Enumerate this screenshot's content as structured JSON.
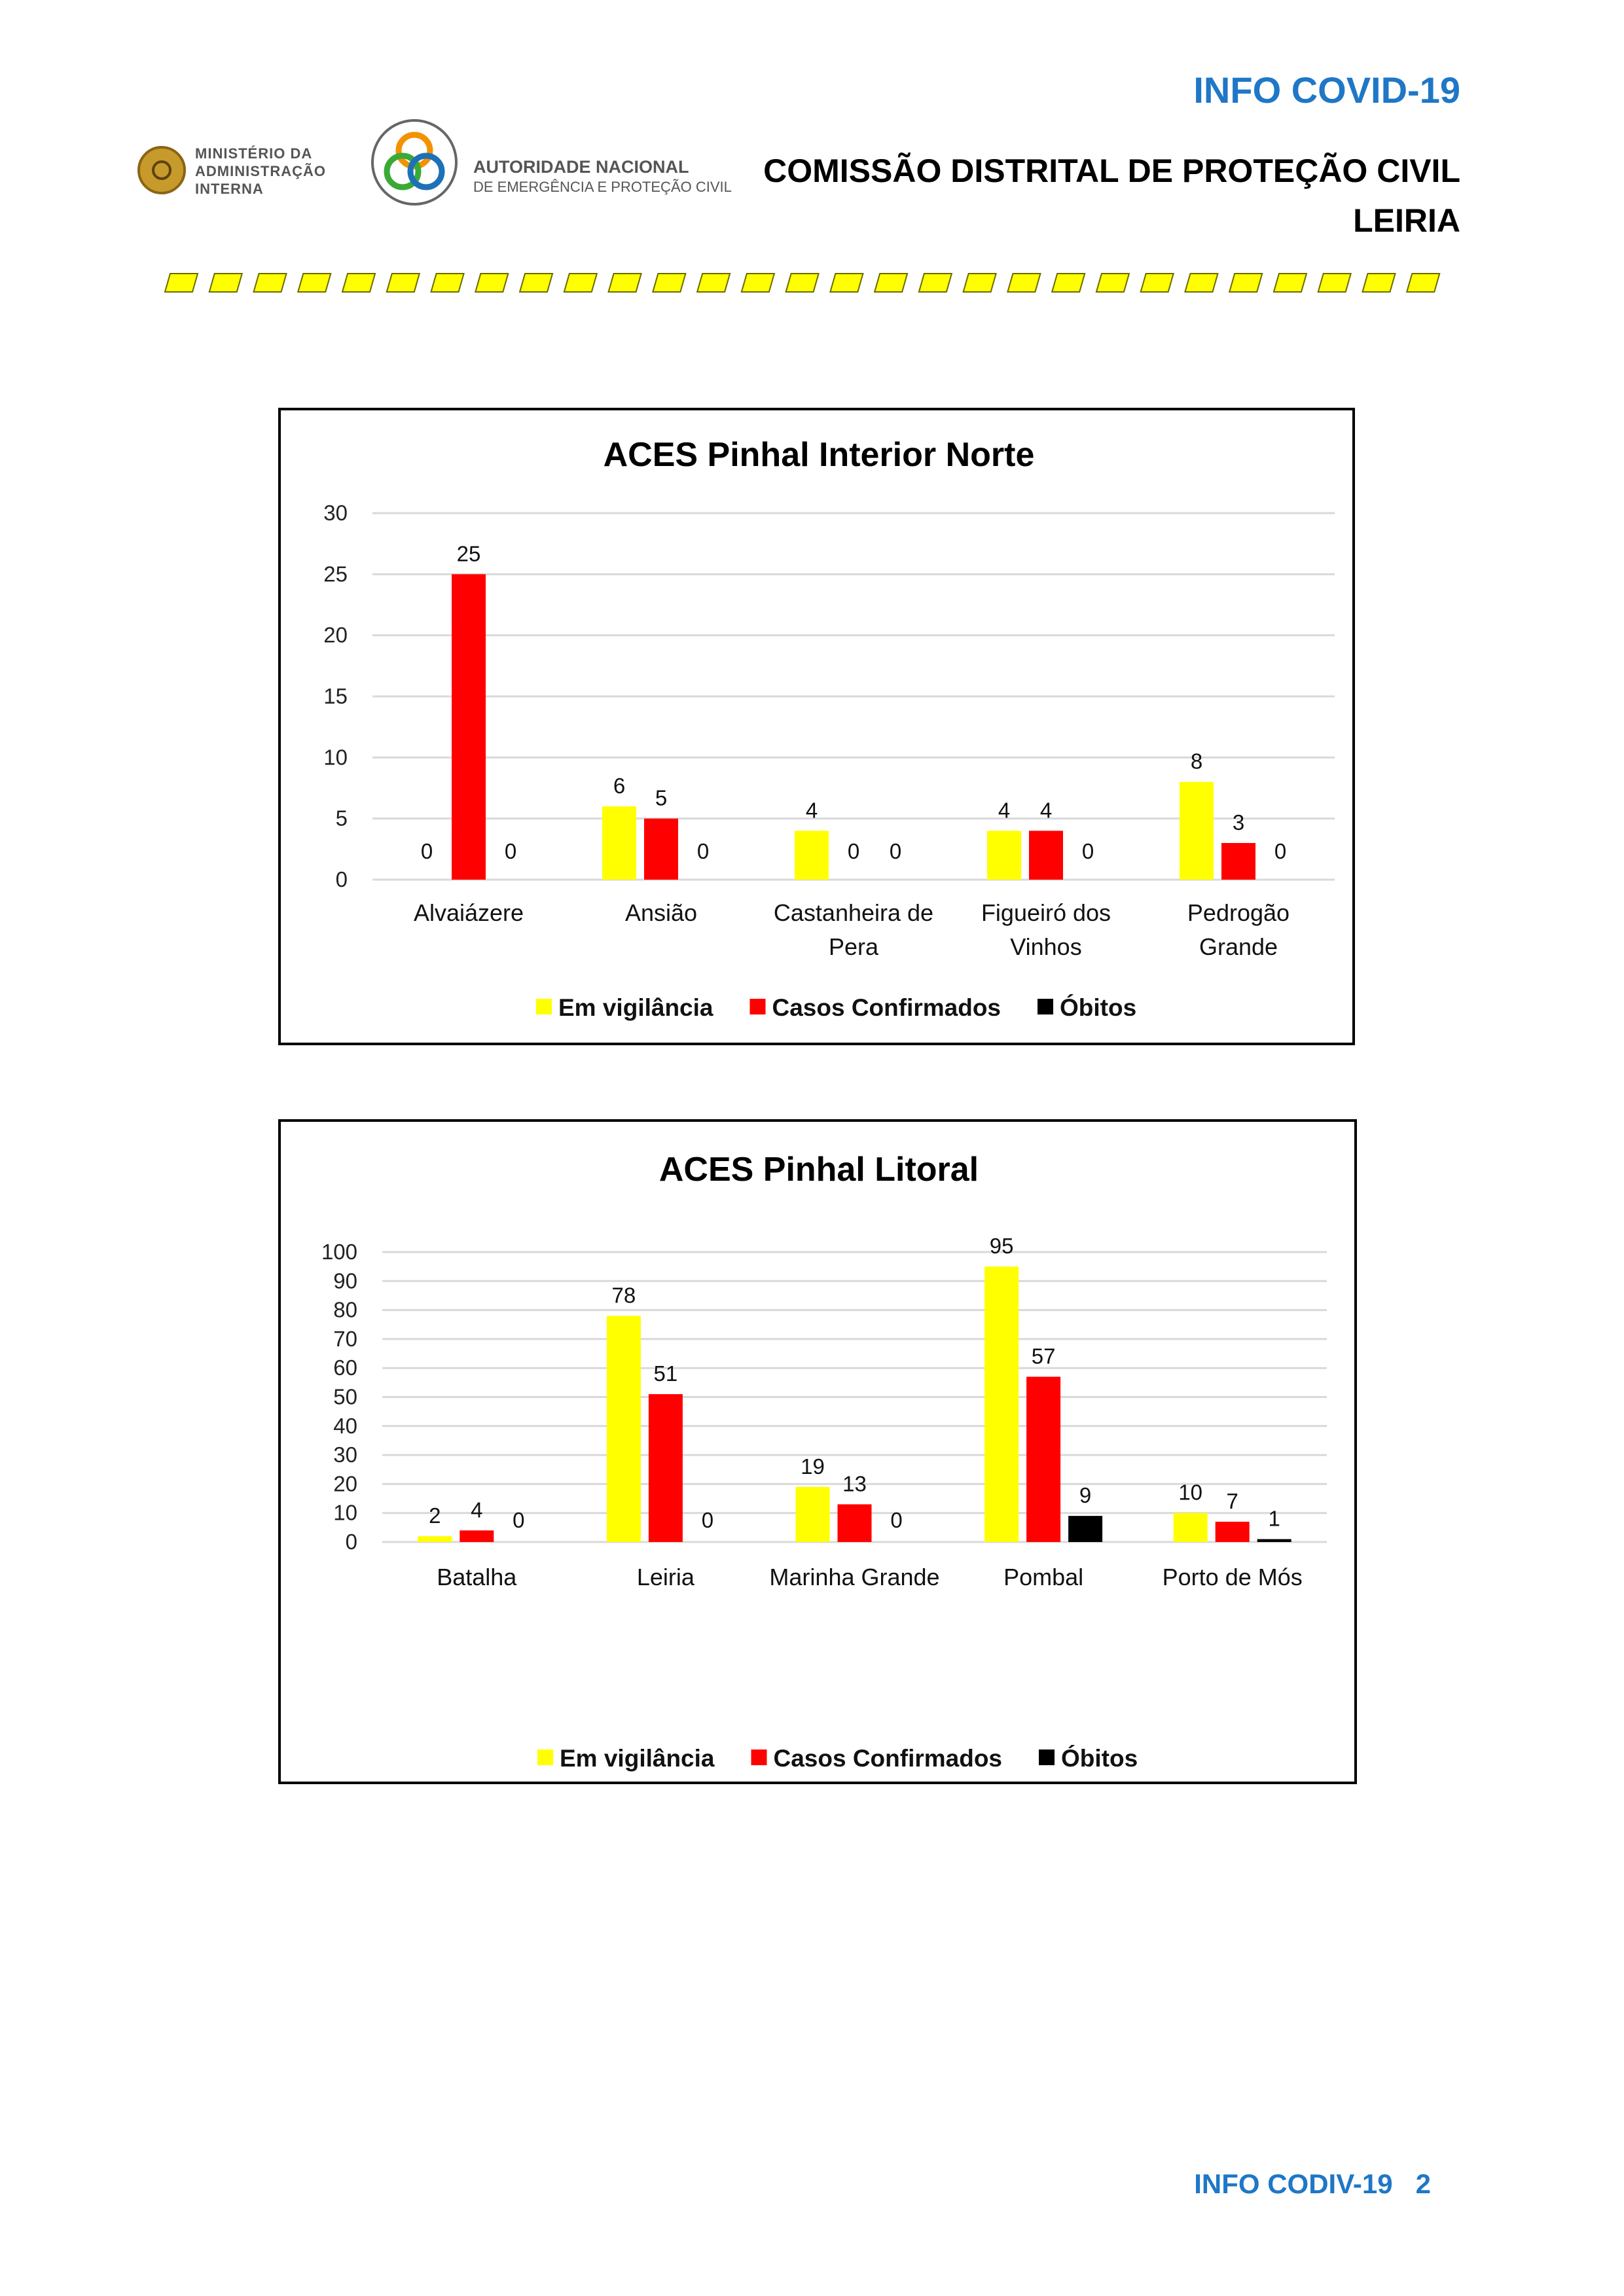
{
  "header": {
    "title": "INFO COVID-19",
    "subtitle_line1": "COMISSÃO DISTRITAL DE PROTEÇÃO CIVIL",
    "subtitle_line2": "LEIRIA",
    "logo_mai_text": [
      "MINISTÉRIO DA",
      "ADMINISTRAÇÃO",
      "INTERNA"
    ],
    "logo_anepc_line1": "AUTORIDADE NACIONAL",
    "logo_anepc_line2": "DE EMERGÊNCIA E PROTEÇÃO CIVIL"
  },
  "colors": {
    "vigilancia": "#ffff00",
    "confirmados": "#ff0000",
    "obitos": "#000000",
    "accent": "#1f77c6",
    "stripe": "#ffff00"
  },
  "chart_data": [
    {
      "type": "bar",
      "title": "ACES Pinhal Interior Norte",
      "categories": [
        [
          "Alvaiázere"
        ],
        [
          "Ansião"
        ],
        [
          "Castanheira de",
          "Pera"
        ],
        [
          "Figueiró dos",
          "Vinhos"
        ],
        [
          "Pedrogão",
          "Grande"
        ]
      ],
      "series": [
        {
          "name": "Em vigilância",
          "values": [
            0,
            6,
            4,
            4,
            8
          ]
        },
        {
          "name": "Casos Confirmados",
          "values": [
            25,
            5,
            0,
            4,
            3
          ]
        },
        {
          "name": "Óbitos",
          "values": [
            0,
            0,
            0,
            0,
            0
          ]
        }
      ],
      "ylim": [
        0,
        30
      ],
      "yticks": [
        0,
        5,
        10,
        15,
        20,
        25,
        30
      ],
      "legend": "bottom"
    },
    {
      "type": "bar",
      "title": "ACES Pinhal Litoral",
      "categories": [
        [
          "Batalha"
        ],
        [
          "Leiria"
        ],
        [
          "Marinha Grande"
        ],
        [
          "Pombal"
        ],
        [
          "Porto de Mós"
        ]
      ],
      "series": [
        {
          "name": "Em vigilância",
          "values": [
            2,
            78,
            19,
            95,
            10
          ]
        },
        {
          "name": "Casos Confirmados",
          "values": [
            4,
            51,
            13,
            57,
            7
          ]
        },
        {
          "name": "Óbitos",
          "values": [
            0,
            0,
            0,
            9,
            1
          ]
        }
      ],
      "ylim": [
        0,
        100
      ],
      "yticks": [
        0,
        10,
        20,
        30,
        40,
        50,
        60,
        70,
        80,
        90,
        100
      ],
      "legend": "bottom"
    }
  ],
  "footer": {
    "text": "INFO CODIV-19",
    "page": "2"
  }
}
